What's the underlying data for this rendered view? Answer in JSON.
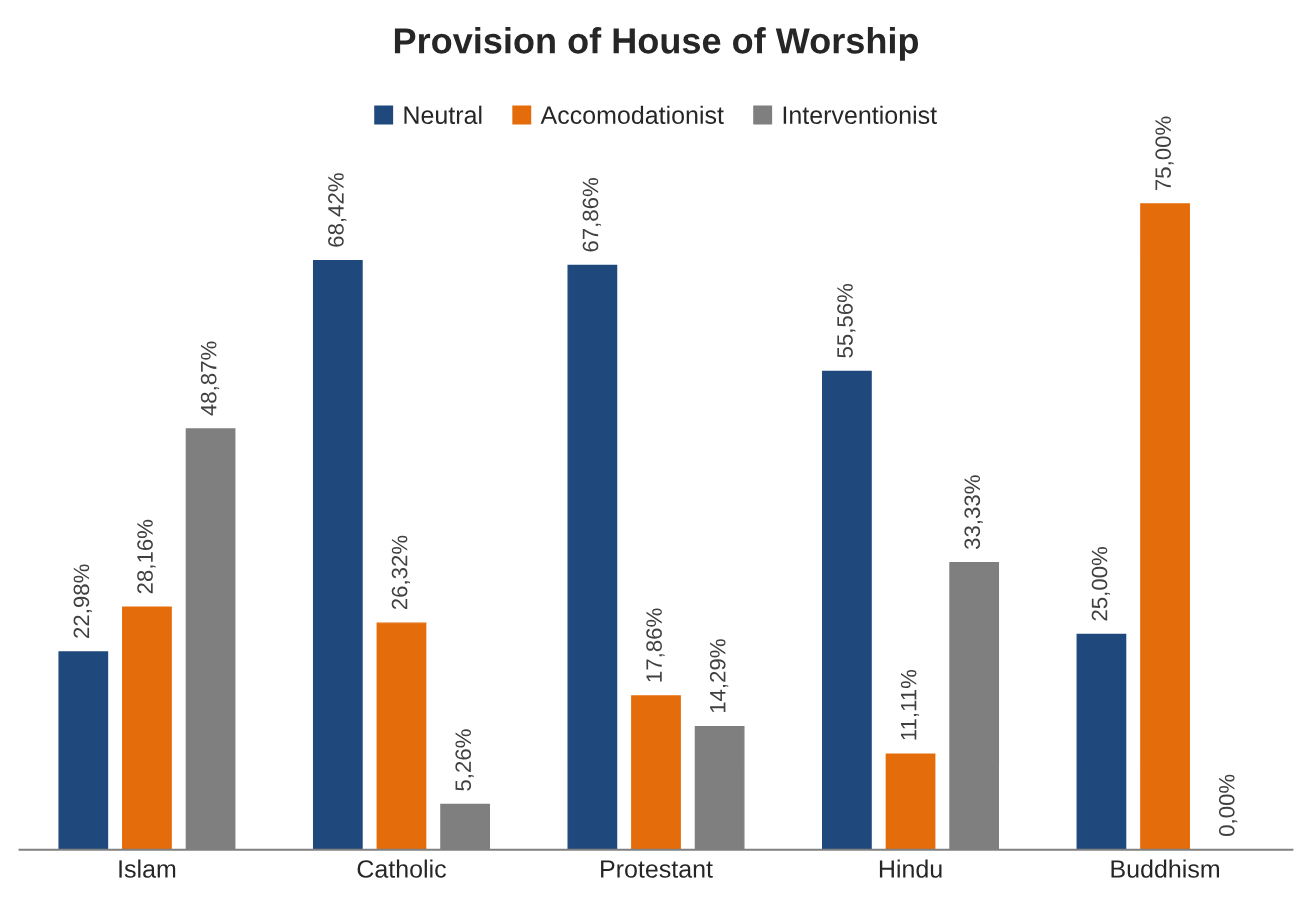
{
  "chart_data": {
    "type": "bar",
    "title": "Provision of House of Worship",
    "categories": [
      "Islam",
      "Catholic",
      "Protestant",
      "Hindu",
      "Buddhism"
    ],
    "series": [
      {
        "name": "Neutral",
        "color": "#1f497d",
        "values": [
          22.98,
          68.42,
          67.86,
          55.56,
          25.0
        ],
        "value_labels": [
          "22,98%",
          "68,42%",
          "67,86%",
          "55,56%",
          "25,00%"
        ]
      },
      {
        "name": "Accomodationist",
        "color": "#e46c0a",
        "values": [
          28.16,
          26.32,
          17.86,
          11.11,
          75.0
        ],
        "value_labels": [
          "28,16%",
          "26,32%",
          "17,86%",
          "11,11%",
          "75,00%"
        ]
      },
      {
        "name": "Interventionist",
        "color": "#7f7f7f",
        "values": [
          48.87,
          5.26,
          14.29,
          33.33,
          0.0
        ],
        "value_labels": [
          "48,87%",
          "5,26%",
          "14,29%",
          "33,33%",
          "0,00%"
        ]
      }
    ],
    "legend": "top",
    "grid": false,
    "tick_labels": "x"
  }
}
